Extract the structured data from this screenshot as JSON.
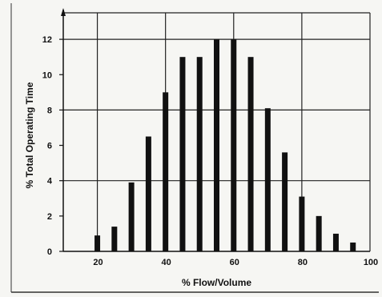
{
  "chart_data": {
    "type": "bar",
    "xlabel": "% Flow/Volume",
    "ylabel": "% Total Operating Time",
    "xlim": [
      10,
      100
    ],
    "ylim": [
      0,
      13.5
    ],
    "xticks": [
      20,
      40,
      60,
      80,
      100
    ],
    "yticks": [
      0,
      2,
      4,
      6,
      8,
      10,
      12
    ],
    "grid": true,
    "x": [
      20,
      25,
      30,
      35,
      40,
      45,
      50,
      55,
      60,
      65,
      70,
      75,
      80,
      85,
      90,
      95
    ],
    "values": [
      0.9,
      1.4,
      3.9,
      6.5,
      9.0,
      11.0,
      11.0,
      12.0,
      12.0,
      11.0,
      8.1,
      5.6,
      3.1,
      2.0,
      1.0,
      0.5
    ],
    "tick_labels_x": [
      "20",
      "40",
      "60",
      "80",
      "100"
    ],
    "tick_labels_y": [
      "0",
      "2",
      "4",
      "6",
      "8",
      "10",
      "12"
    ],
    "bar_color": "#111111",
    "grid_color": "#222222"
  }
}
